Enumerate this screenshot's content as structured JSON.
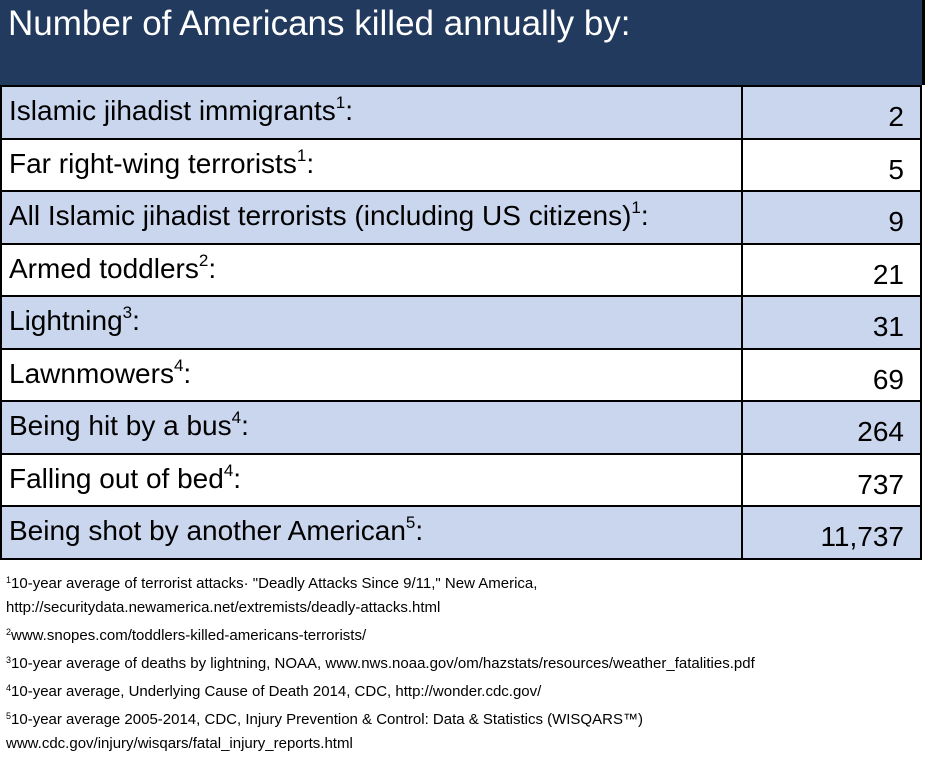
{
  "header": {
    "title": "Number of Americans killed annually by:"
  },
  "table": {
    "rows": [
      {
        "label": "Islamic jihadist immigrants",
        "note": "1",
        "suffix": ":",
        "value": "2"
      },
      {
        "label": "Far right-wing terrorists",
        "note": "1",
        "suffix": ":",
        "value": "5"
      },
      {
        "label": "All Islamic jihadist terrorists (including US citizens)",
        "note": "1",
        "suffix": ":",
        "value": "9"
      },
      {
        "label": "Armed toddlers",
        "note": "2",
        "suffix": ":",
        "value": "21"
      },
      {
        "label": "Lightning",
        "note": "3",
        "suffix": ":",
        "value": "31"
      },
      {
        "label": "Lawnmowers",
        "note": "4",
        "suffix": ":",
        "value": "69"
      },
      {
        "label": "Being hit by a bus",
        "note": "4",
        "suffix": ":",
        "value": "264"
      },
      {
        "label": "Falling out of bed",
        "note": "4",
        "suffix": ":",
        "value": "737"
      },
      {
        "label": "Being shot by another American",
        "note": "5",
        "suffix": ":",
        "value": "11,737"
      }
    ]
  },
  "footnotes": [
    {
      "marker": "1",
      "lines": [
        "10-year average of terrorist attacks· \"Deadly Attacks Since 9/11,\" New America,",
        "http://securitydata.newamerica.net/extremists/deadly-attacks.html"
      ]
    },
    {
      "marker": "2",
      "lines": [
        "www.snopes.com/toddlers-killed-americans-terrorists/"
      ]
    },
    {
      "marker": "3",
      "lines": [
        "10-year average of deaths by lightning, NOAA, www.nws.noaa.gov/om/hazstats/resources/weather_fatalities.pdf"
      ]
    },
    {
      "marker": "4",
      "lines": [
        "10-year average, Underlying Cause of Death 2014, CDC, http://wonder.cdc.gov/"
      ]
    },
    {
      "marker": "5",
      "lines": [
        "10-year average 2005-2014, CDC, Injury Prevention & Control: Data & Statistics (WISQARS™)",
        "www.cdc.gov/injury/wisqars/fatal_injury_reports.html"
      ]
    }
  ]
}
